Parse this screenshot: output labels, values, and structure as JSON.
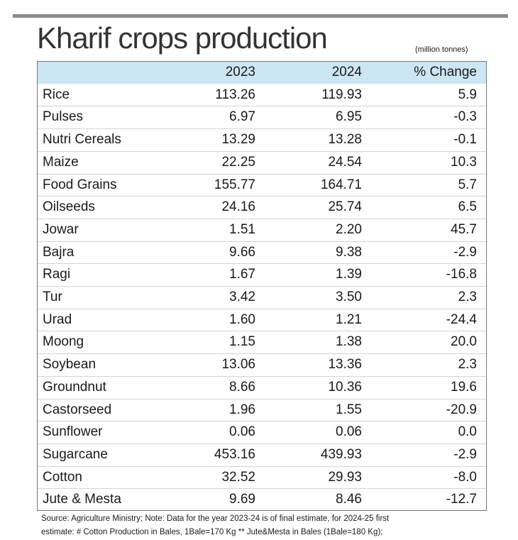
{
  "header": {
    "title": "Kharif crops production",
    "unit": "(million tonnes)"
  },
  "table": {
    "columns": [
      "",
      "2023",
      "2024",
      "% Change"
    ],
    "rows": [
      [
        "Rice",
        "113.26",
        "119.93",
        "5.9"
      ],
      [
        "Pulses",
        "6.97",
        "6.95",
        "-0.3"
      ],
      [
        "Nutri Cereals",
        "13.29",
        "13.28",
        "-0.1"
      ],
      [
        "Maize",
        "22.25",
        "24.54",
        "10.3"
      ],
      [
        "Food Grains",
        "155.77",
        "164.71",
        "5.7"
      ],
      [
        "Oilseeds",
        "24.16",
        "25.74",
        "6.5"
      ],
      [
        "Jowar",
        "1.51",
        "2.20",
        "45.7"
      ],
      [
        "Bajra",
        "9.66",
        "9.38",
        "-2.9"
      ],
      [
        "Ragi",
        "1.67",
        "1.39",
        "-16.8"
      ],
      [
        "Tur",
        "3.42",
        "3.50",
        "2.3"
      ],
      [
        "Urad",
        "1.60",
        "1.21",
        "-24.4"
      ],
      [
        "Moong",
        "1.15",
        "1.38",
        "20.0"
      ],
      [
        "Soybean",
        "13.06",
        "13.36",
        "2.3"
      ],
      [
        "Groundnut",
        "8.66",
        "10.36",
        "19.6"
      ],
      [
        "Castorseed",
        "1.96",
        "1.55",
        "-20.9"
      ],
      [
        "Sunflower",
        "0.06",
        "0.06",
        "0.0"
      ],
      [
        "Sugarcane",
        "453.16",
        "439.93",
        "-2.9"
      ],
      [
        "Cotton",
        "32.52",
        "29.93",
        "-8.0"
      ],
      [
        "Jute & Mesta",
        "9.69",
        "8.46",
        "-12.7"
      ]
    ]
  },
  "footer": {
    "lines": [
      "Source: Agriculture Ministry;  Note: Data for the year 2023-24 is of final estimate, for 2024-25 first",
      "estimate:  # Cotton Production in Bales, 1Bale=170 Kg  ** Jute&Mesta in Bales (1Bale=180 Kg);"
    ]
  }
}
